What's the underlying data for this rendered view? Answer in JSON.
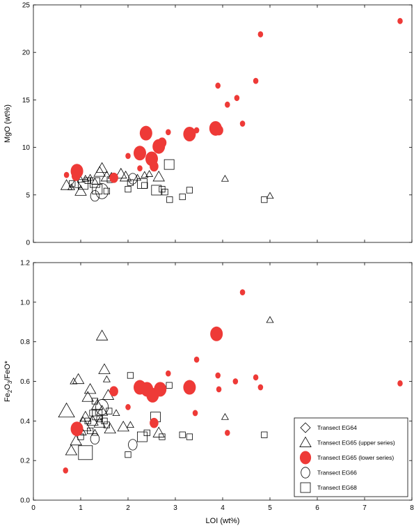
{
  "chart_data": [
    {
      "type": "scatter",
      "title": "",
      "xlabel": "",
      "ylabel": "MgO (wt%)",
      "xlim": [
        0,
        8
      ],
      "ylim": [
        0,
        25
      ],
      "xticks": [],
      "yticks": [
        "0",
        "5",
        "10",
        "15",
        "20",
        "25"
      ],
      "legend": null,
      "series": [
        {
          "name": "Transect EG64",
          "marker": "diamond",
          "points": []
        },
        {
          "name": "Transect EG65 (upper series)",
          "marker": "triangle",
          "points": [
            [
              0.7,
              6.0,
              "m"
            ],
            [
              0.8,
              5.8,
              "s"
            ],
            [
              0.9,
              6.2,
              "m"
            ],
            [
              1.0,
              5.4,
              "m"
            ],
            [
              1.0,
              6.6,
              "s"
            ],
            [
              1.1,
              6.7,
              "s"
            ],
            [
              1.2,
              6.8,
              "s"
            ],
            [
              1.3,
              6.4,
              "s"
            ],
            [
              1.4,
              7.4,
              "m"
            ],
            [
              1.45,
              7.8,
              "m"
            ],
            [
              1.55,
              6.9,
              "m"
            ],
            [
              1.65,
              7.0,
              "s"
            ],
            [
              1.85,
              7.2,
              "m"
            ],
            [
              1.95,
              6.9,
              "m"
            ],
            [
              2.2,
              6.8,
              "s"
            ],
            [
              2.35,
              7.1,
              "s"
            ],
            [
              2.45,
              7.2,
              "s"
            ],
            [
              2.65,
              6.9,
              "m"
            ],
            [
              4.05,
              6.7,
              "s"
            ],
            [
              5.0,
              4.9,
              "s"
            ]
          ]
        },
        {
          "name": "Transect EG65 (lower series)",
          "marker": "circle-filled",
          "points": [
            [
              0.7,
              7.1,
              "s"
            ],
            [
              0.9,
              7.0,
              "m"
            ],
            [
              0.92,
              7.5,
              "l"
            ],
            [
              1.7,
              6.8,
              "m"
            ],
            [
              2.0,
              9.1,
              "s"
            ],
            [
              2.25,
              7.8,
              "s"
            ],
            [
              2.25,
              9.4,
              "l"
            ],
            [
              2.38,
              11.5,
              "l"
            ],
            [
              2.5,
              8.8,
              "l"
            ],
            [
              2.55,
              8.0,
              "m"
            ],
            [
              2.65,
              10.1,
              "l"
            ],
            [
              2.72,
              10.5,
              "m"
            ],
            [
              2.85,
              11.6,
              "s"
            ],
            [
              3.3,
              11.4,
              "l"
            ],
            [
              3.45,
              11.8,
              "s"
            ],
            [
              3.85,
              12.0,
              "l"
            ],
            [
              3.92,
              11.8,
              "m"
            ],
            [
              3.9,
              16.5,
              "s"
            ],
            [
              4.1,
              14.5,
              "s"
            ],
            [
              4.3,
              15.2,
              "s"
            ],
            [
              4.42,
              12.5,
              "s"
            ],
            [
              4.7,
              17.0,
              "s"
            ],
            [
              4.8,
              21.9,
              "s"
            ],
            [
              7.75,
              23.3,
              "s"
            ]
          ]
        },
        {
          "name": "Transect EG66",
          "marker": "circle-open",
          "points": [
            [
              1.3,
              4.9,
              "m"
            ],
            [
              1.45,
              5.4,
              "l"
            ],
            [
              2.1,
              6.7,
              "m"
            ]
          ]
        },
        {
          "name": "Transect EG68",
          "marker": "square",
          "points": [
            [
              0.82,
              6.2,
              "s"
            ],
            [
              1.05,
              6.1,
              "m"
            ],
            [
              1.15,
              6.5,
              "s"
            ],
            [
              1.3,
              6.3,
              "m"
            ],
            [
              1.35,
              5.6,
              "m"
            ],
            [
              1.55,
              5.4,
              "s"
            ],
            [
              1.62,
              6.6,
              "s"
            ],
            [
              2.0,
              5.6,
              "s"
            ],
            [
              2.05,
              6.3,
              "s"
            ],
            [
              2.3,
              6.2,
              "m"
            ],
            [
              2.35,
              6.0,
              "s"
            ],
            [
              2.6,
              5.5,
              "m"
            ],
            [
              2.72,
              5.6,
              "s"
            ],
            [
              2.78,
              5.3,
              "s"
            ],
            [
              2.87,
              8.2,
              "m"
            ],
            [
              2.88,
              4.5,
              "s"
            ],
            [
              3.15,
              4.8,
              "s"
            ],
            [
              3.3,
              5.5,
              "s"
            ],
            [
              4.88,
              4.5,
              "s"
            ]
          ]
        }
      ]
    },
    {
      "type": "scatter",
      "title": "",
      "xlabel": "LOI (wt%)",
      "ylabel": "Fe2O3/FeO*",
      "ylabel_parts": {
        "a": "Fe",
        "b": "2",
        "c": "O",
        "d": "3",
        "e": "/FeO*"
      },
      "xlim": [
        0,
        8
      ],
      "ylim": [
        0,
        1.2
      ],
      "xticks": [
        "0",
        "1",
        "2",
        "3",
        "4",
        "5",
        "6",
        "7",
        "8"
      ],
      "yticks": [
        "0.0",
        "0.2",
        "0.4",
        "0.6",
        "0.8",
        "1.0",
        "1.2"
      ],
      "legend": "bottom-right",
      "series": [
        {
          "name": "Transect EG64",
          "marker": "diamond",
          "points": []
        },
        {
          "name": "Transect EG65 (upper series)",
          "marker": "triangle",
          "points": [
            [
              0.7,
              0.45,
              "l"
            ],
            [
              0.8,
              0.25,
              "m"
            ],
            [
              0.85,
              0.6,
              "s"
            ],
            [
              0.9,
              0.3,
              "m"
            ],
            [
              0.95,
              0.61,
              "m"
            ],
            [
              1.0,
              0.35,
              "m"
            ],
            [
              1.05,
              0.38,
              "l"
            ],
            [
              1.1,
              0.42,
              "m"
            ],
            [
              1.15,
              0.52,
              "m"
            ],
            [
              1.2,
              0.56,
              "m"
            ],
            [
              1.25,
              0.4,
              "m"
            ],
            [
              1.3,
              0.34,
              "s"
            ],
            [
              1.35,
              0.48,
              "m"
            ],
            [
              1.4,
              0.39,
              "m"
            ],
            [
              1.45,
              0.45,
              "m"
            ],
            [
              1.45,
              0.83,
              "m"
            ],
            [
              1.5,
              0.66,
              "m"
            ],
            [
              1.55,
              0.61,
              "s"
            ],
            [
              1.58,
              0.53,
              "m"
            ],
            [
              1.62,
              0.36,
              "m"
            ],
            [
              1.75,
              0.44,
              "s"
            ],
            [
              1.9,
              0.37,
              "m"
            ],
            [
              2.05,
              0.38,
              "s"
            ],
            [
              2.65,
              0.34,
              "m"
            ],
            [
              4.05,
              0.42,
              "s"
            ],
            [
              5.0,
              0.91,
              "s"
            ]
          ]
        },
        {
          "name": "Transect EG65 (lower series)",
          "marker": "circle-filled",
          "points": [
            [
              0.68,
              0.15,
              "s"
            ],
            [
              0.92,
              0.36,
              "l"
            ],
            [
              1.7,
              0.55,
              "m"
            ],
            [
              2.0,
              0.47,
              "s"
            ],
            [
              2.25,
              0.57,
              "l"
            ],
            [
              2.4,
              0.56,
              "l"
            ],
            [
              2.52,
              0.53,
              "l"
            ],
            [
              2.55,
              0.39,
              "m"
            ],
            [
              2.68,
              0.56,
              "l"
            ],
            [
              2.85,
              0.64,
              "s"
            ],
            [
              3.3,
              0.57,
              "l"
            ],
            [
              3.42,
              0.44,
              "s"
            ],
            [
              3.45,
              0.71,
              "s"
            ],
            [
              3.87,
              0.84,
              "l"
            ],
            [
              3.9,
              0.63,
              "s"
            ],
            [
              3.92,
              0.56,
              "s"
            ],
            [
              4.1,
              0.34,
              "s"
            ],
            [
              4.27,
              0.6,
              "s"
            ],
            [
              4.42,
              1.05,
              "s"
            ],
            [
              4.7,
              0.62,
              "s"
            ],
            [
              4.8,
              0.57,
              "s"
            ],
            [
              7.75,
              0.59,
              "s"
            ]
          ]
        },
        {
          "name": "Transect EG66",
          "marker": "circle-open",
          "points": [
            [
              1.3,
              0.31,
              "m"
            ],
            [
              1.45,
              0.47,
              "l"
            ],
            [
              2.1,
              0.28,
              "m"
            ]
          ]
        },
        {
          "name": "Transect EG68",
          "marker": "square",
          "points": [
            [
              0.9,
              0.35,
              "s"
            ],
            [
              1.0,
              0.32,
              "s"
            ],
            [
              1.1,
              0.24,
              "l"
            ],
            [
              1.15,
              0.4,
              "s"
            ],
            [
              1.2,
              0.35,
              "s"
            ],
            [
              1.25,
              0.44,
              "s"
            ],
            [
              1.3,
              0.5,
              "s"
            ],
            [
              1.35,
              0.43,
              "m"
            ],
            [
              1.4,
              0.41,
              "s"
            ],
            [
              1.5,
              0.4,
              "s"
            ],
            [
              1.55,
              0.38,
              "s"
            ],
            [
              1.6,
              0.45,
              "s"
            ],
            [
              2.0,
              0.23,
              "s"
            ],
            [
              2.05,
              0.63,
              "s"
            ],
            [
              2.3,
              0.32,
              "m"
            ],
            [
              2.4,
              0.34,
              "s"
            ],
            [
              2.58,
              0.42,
              "m"
            ],
            [
              2.72,
              0.32,
              "s"
            ],
            [
              2.87,
              0.58,
              "s"
            ],
            [
              3.15,
              0.33,
              "s"
            ],
            [
              3.3,
              0.32,
              "s"
            ],
            [
              4.88,
              0.33,
              "s"
            ]
          ]
        }
      ]
    }
  ]
}
